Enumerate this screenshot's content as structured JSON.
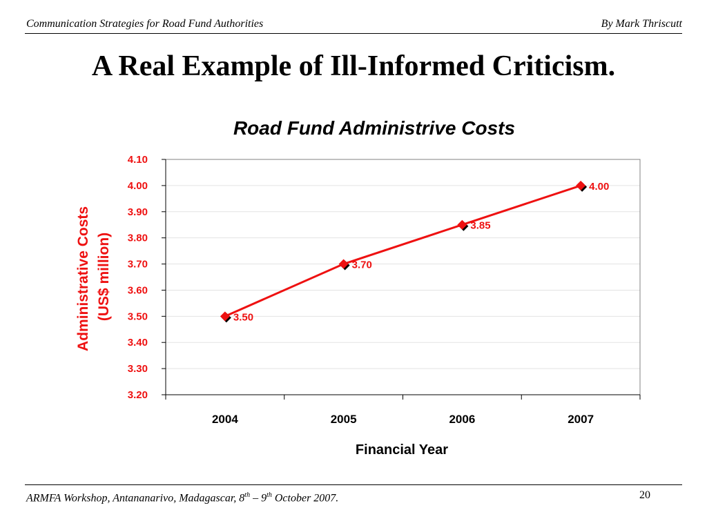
{
  "header": {
    "left": "Communication Strategies for Road Fund Authorities",
    "right": "By Mark Thriscutt"
  },
  "slide_title": "A Real Example of Ill-Informed Criticism.",
  "footer": {
    "prefix": "ARMFA Workshop, Antananarivo, Madagascar, 8",
    "sup1": "th",
    "mid": " – 9",
    "sup2": "th",
    "suffix": " October 2007.",
    "page_number": "20"
  },
  "chart_data": {
    "type": "line",
    "title": "Road Fund Administrive Costs",
    "xlabel": "Financial Year",
    "ylabel_line1": "Administrative Costs",
    "ylabel_line2": "(US$ million)",
    "categories": [
      "2004",
      "2005",
      "2006",
      "2007"
    ],
    "series": [
      {
        "values": [
          3.5,
          3.7,
          3.85,
          4.0
        ],
        "labels": [
          "3.50",
          "3.70",
          "3.85",
          "4.00"
        ]
      }
    ],
    "ylim": [
      3.2,
      4.1
    ],
    "yticks": [
      "3.20",
      "3.30",
      "3.40",
      "3.50",
      "3.60",
      "3.70",
      "3.80",
      "3.90",
      "4.00",
      "4.10"
    ],
    "grid": true,
    "line_color": "#ee1111",
    "marker_color": "#ee1111",
    "marker_shadow_color": "#000000",
    "tick_label_color": "#ee1111"
  }
}
